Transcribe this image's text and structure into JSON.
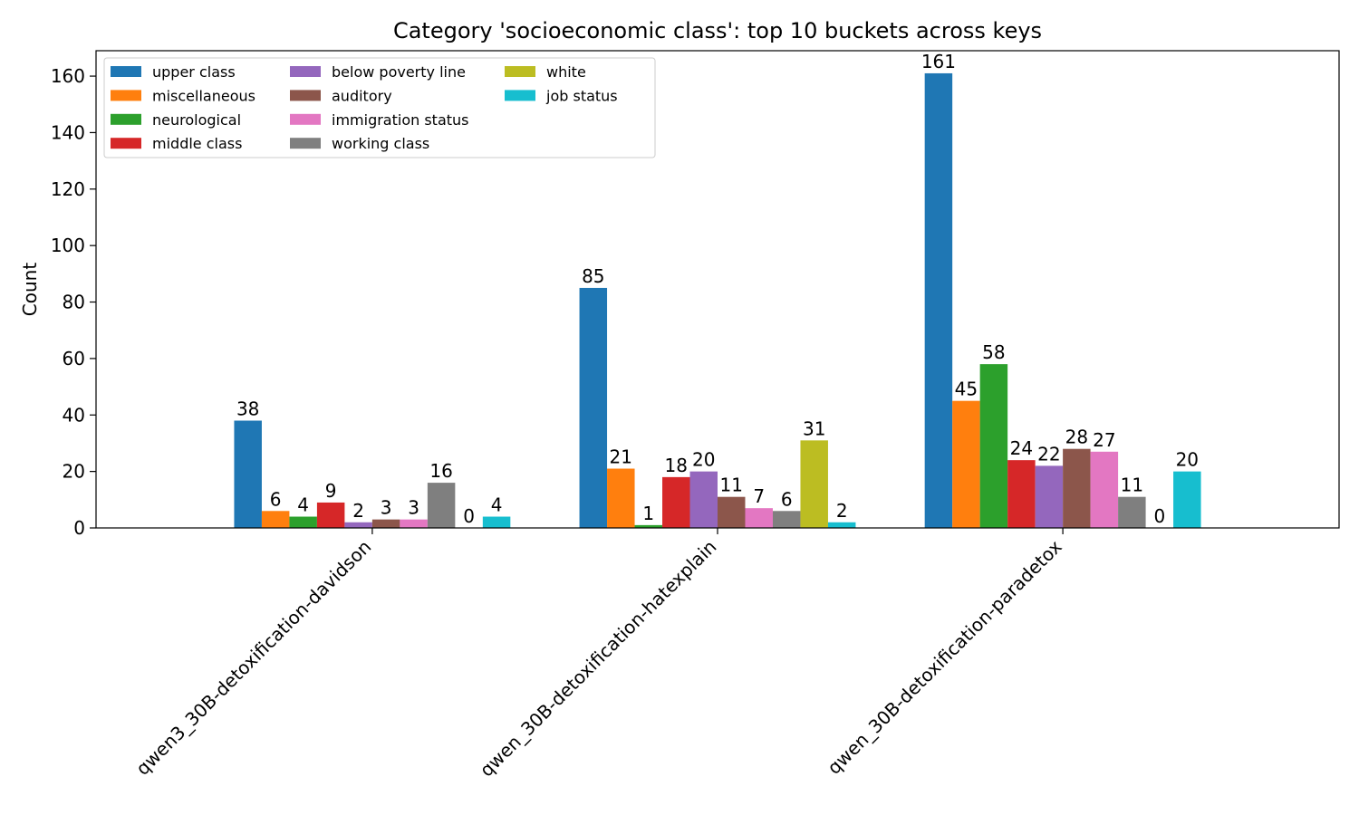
{
  "chart_data": {
    "type": "bar",
    "title": "Category 'socioeconomic class': top 10 buckets across keys",
    "xlabel": "",
    "ylabel": "Count",
    "ylim": [
      0,
      169
    ],
    "yticks": [
      0,
      20,
      40,
      60,
      80,
      100,
      120,
      140,
      160
    ],
    "categories": [
      "qwen3_30B-detoxification-davidson",
      "qwen_30B-detoxification-hatexplain",
      "qwen_30B-detoxification-paradetox"
    ],
    "series": [
      {
        "name": "upper class",
        "color": "#1f77b4",
        "values": [
          38,
          85,
          161
        ]
      },
      {
        "name": "miscellaneous",
        "color": "#ff7f0e",
        "values": [
          6,
          21,
          45
        ]
      },
      {
        "name": "neurological",
        "color": "#2ca02c",
        "values": [
          4,
          1,
          58
        ]
      },
      {
        "name": "middle class",
        "color": "#d62728",
        "values": [
          9,
          18,
          24
        ]
      },
      {
        "name": "below poverty line",
        "color": "#9467bd",
        "values": [
          2,
          20,
          22
        ]
      },
      {
        "name": "auditory",
        "color": "#8c564b",
        "values": [
          3,
          11,
          28
        ]
      },
      {
        "name": "immigration status",
        "color": "#e377c2",
        "values": [
          3,
          7,
          27
        ]
      },
      {
        "name": "working class",
        "color": "#7f7f7f",
        "values": [
          16,
          6,
          11
        ]
      },
      {
        "name": "white",
        "color": "#bcbd22",
        "values": [
          0,
          31,
          0
        ]
      },
      {
        "name": "job status",
        "color": "#17becf",
        "values": [
          4,
          2,
          20
        ]
      }
    ],
    "grid": false,
    "legend_position": "top-left",
    "legend_columns": 3
  }
}
